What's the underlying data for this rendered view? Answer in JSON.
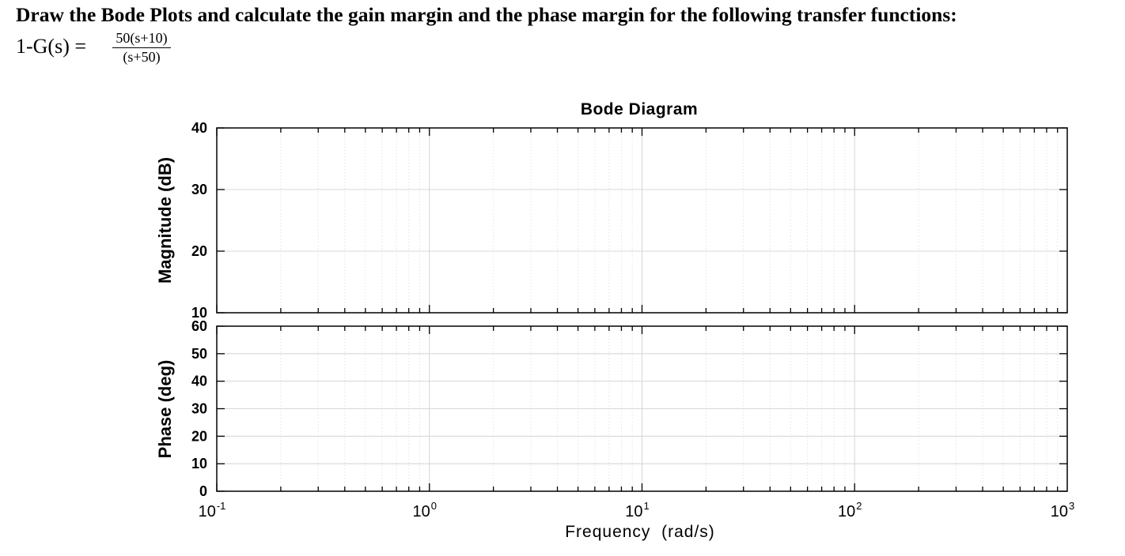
{
  "problem": {
    "statement": "Draw the Bode Plots and calculate the gain margin and the phase margin for the following transfer functions:",
    "lhs": "1-G(s) =",
    "numerator": "50(s+10)",
    "denominator": "(s+50)"
  },
  "chart_data": {
    "type": "line",
    "title": "Bode Diagram",
    "xlabel": "Frequency  (rad/s)",
    "xscale": "log",
    "xlim": [
      0.1,
      1000
    ],
    "x_ticks": [
      {
        "base": "10",
        "exp": "-1"
      },
      {
        "base": "10",
        "exp": "0"
      },
      {
        "base": "10",
        "exp": "1"
      },
      {
        "base": "10",
        "exp": "2"
      },
      {
        "base": "10",
        "exp": "3"
      }
    ],
    "grid": true,
    "series": [],
    "magnitude_plot": {
      "ylabel": "Magnitude (dB)",
      "ylim": [
        10,
        40
      ],
      "y_ticks": [
        "40",
        "30",
        "20",
        "10"
      ]
    },
    "phase_plot": {
      "ylabel": "Phase (deg)",
      "ylim": [
        0,
        60
      ],
      "y_ticks": [
        "60",
        "50",
        "40",
        "30",
        "20",
        "10",
        "0"
      ]
    }
  }
}
